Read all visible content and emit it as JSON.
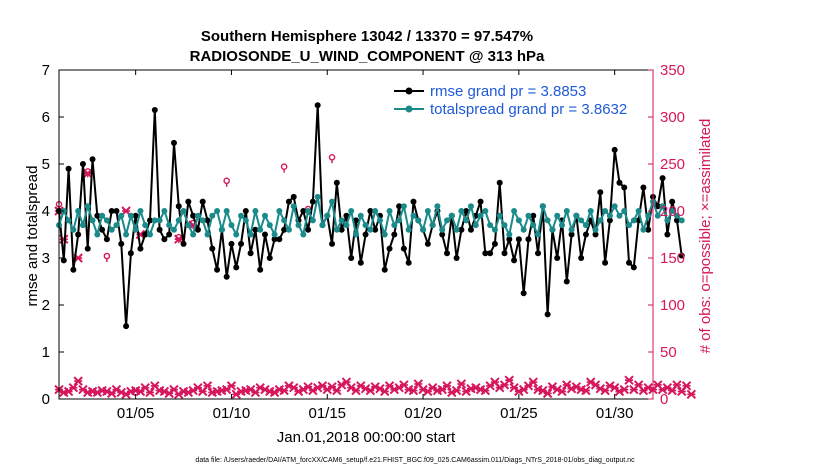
{
  "colors": {
    "rmse": "#000000",
    "spread": "#1a8a8a",
    "obs": "#d6175c",
    "legend_text": "#1f5ad8"
  },
  "chart_data": {
    "type": "line",
    "title": "Southern Hemisphere 13042 / 13370 = 97.547%",
    "subtitle": "RADIOSONDE_U_WIND_COMPONENT @ 313 hPa",
    "xlabel": "Jan.01,2018 00:00:00 start",
    "ylabel": "rmse and totalspread",
    "y2label": "# of obs: o=possible; ×=assimilated",
    "footnote": "data file: /Users/raeder/DAI/ATM_forcXX/CAM6_setup/f.e21.FHIST_BGC.f09_025.CAM6assim.011/Diags_NTrS_2018-01/obs_diag_output.nc",
    "xlim": [
      1,
      32
    ],
    "ylim": [
      0,
      7
    ],
    "y2lim": [
      0,
      350
    ],
    "x_ticks": [
      5,
      10,
      15,
      20,
      25,
      30
    ],
    "x_tick_labels": [
      "01/05",
      "01/10",
      "01/15",
      "01/20",
      "01/25",
      "01/30"
    ],
    "y_ticks": [
      0,
      1,
      2,
      3,
      4,
      5,
      6,
      7
    ],
    "y2_ticks": [
      0,
      50,
      100,
      150,
      200,
      250,
      300,
      350
    ],
    "legend": {
      "position": "top-right",
      "rmse": "rmse grand pr = 3.8853",
      "spread": "totalspread grand pr = 3.8632"
    },
    "x_start": 1,
    "x_step": 0.25,
    "series": [
      {
        "name": "rmse",
        "axis": "left",
        "values": [
          4.0,
          2.95,
          4.9,
          2.75,
          3.5,
          5.0,
          3.2,
          5.1,
          3.9,
          3.6,
          3.4,
          4.0,
          4.0,
          3.3,
          1.55,
          3.1,
          3.9,
          3.2,
          3.5,
          3.8,
          6.15,
          3.6,
          3.4,
          3.5,
          5.45,
          4.1,
          3.3,
          4.2,
          3.9,
          3.6,
          4.2,
          3.8,
          3.2,
          2.75,
          3.6,
          2.6,
          3.3,
          2.8,
          3.3,
          4.0,
          3.1,
          3.6,
          2.75,
          3.5,
          3.0,
          3.4,
          3.4,
          3.6,
          4.2,
          4.3,
          3.8,
          4.0,
          3.6,
          4.2,
          6.25,
          3.7,
          3.9,
          3.3,
          4.6,
          3.6,
          3.9,
          3.0,
          3.8,
          2.9,
          3.5,
          4.0,
          3.6,
          3.9,
          2.75,
          3.2,
          3.5,
          4.1,
          3.2,
          2.9,
          4.2,
          3.8,
          3.6,
          3.3,
          3.7,
          4.0,
          3.5,
          3.1,
          3.9,
          3.0,
          3.6,
          4.0,
          3.6,
          3.9,
          4.2,
          3.1,
          3.1,
          3.3,
          4.6,
          3.1,
          3.4,
          2.95,
          3.4,
          2.25,
          3.4,
          3.9,
          3.1,
          4.1,
          1.8,
          3.6,
          3.0,
          3.8,
          2.5,
          3.5,
          3.9,
          3.0,
          3.5,
          3.8,
          3.5,
          4.4,
          2.9,
          3.8,
          5.3,
          4.6,
          4.5,
          2.9,
          2.8,
          3.8,
          4.5,
          3.6,
          4.3,
          4.1,
          4.7,
          3.5,
          4.2,
          3.8,
          3.05
        ],
        "point_markers": true
      },
      {
        "name": "totalspread",
        "axis": "left",
        "values": [
          3.7,
          4.0,
          3.8,
          3.6,
          4.0,
          3.7,
          4.1,
          3.8,
          3.5,
          3.9,
          3.8,
          3.6,
          3.7,
          3.9,
          3.5,
          3.9,
          3.6,
          4.0,
          3.7,
          3.5,
          3.8,
          3.8,
          4.0,
          3.7,
          3.6,
          3.8,
          4.0,
          3.7,
          3.5,
          3.9,
          3.8,
          3.5,
          3.9,
          4.0,
          3.6,
          4.0,
          3.7,
          3.5,
          3.9,
          3.8,
          3.5,
          4.0,
          3.6,
          3.9,
          3.7,
          3.5,
          4.0,
          3.8,
          3.6,
          4.1,
          3.7,
          3.5,
          4.0,
          3.8,
          4.3,
          3.7,
          3.9,
          4.2,
          3.6,
          3.8,
          3.7,
          4.0,
          3.5,
          3.9,
          3.7,
          3.6,
          4.0,
          3.8,
          3.5,
          4.0,
          3.7,
          3.8,
          4.1,
          3.6,
          3.9,
          3.8,
          3.6,
          4.0,
          3.7,
          4.1,
          3.6,
          3.8,
          3.9,
          3.6,
          4.0,
          3.8,
          4.1,
          3.7,
          3.9,
          4.0,
          3.7,
          3.6,
          3.9,
          3.7,
          3.5,
          4.0,
          3.8,
          3.6,
          3.9,
          3.7,
          3.5,
          4.1,
          3.8,
          3.6,
          3.9,
          3.7,
          4.0,
          3.6,
          3.9,
          3.8,
          3.7,
          4.0,
          3.6,
          3.8,
          4.0,
          3.9,
          4.1,
          3.9,
          4.0,
          3.7,
          3.8,
          4.0,
          3.6,
          3.9,
          4.2,
          3.9,
          4.1,
          3.8,
          4.0,
          3.9,
          3.8
        ],
        "point_markers": true
      },
      {
        "name": "obs_possible_top",
        "axis": "right",
        "marker": "o",
        "values": [
          205,
          null,
          null,
          null,
          null,
          null,
          240,
          null,
          null,
          null,
          150,
          null,
          null,
          null,
          null,
          null,
          null,
          null,
          null,
          null,
          null,
          null,
          null,
          null,
          null,
          170,
          null,
          null,
          185,
          null,
          null,
          null,
          null,
          null,
          null,
          230,
          null,
          null,
          null,
          null,
          null,
          null,
          null,
          null,
          null,
          null,
          null,
          245,
          null,
          null,
          null,
          null,
          200,
          null,
          null,
          null,
          null,
          255,
          null,
          null,
          null,
          null,
          null,
          null,
          null,
          null,
          null,
          null,
          null,
          null,
          null,
          null,
          null,
          null,
          null,
          null,
          null,
          null,
          null,
          null,
          null,
          null,
          null,
          null,
          null,
          null,
          null,
          null,
          null,
          null,
          null,
          null,
          null,
          null,
          null,
          null,
          null,
          null,
          null,
          null,
          null,
          null,
          null,
          null,
          null,
          null,
          null,
          null,
          null,
          null,
          null,
          null,
          null,
          null,
          null,
          null,
          null,
          null,
          null,
          null,
          null,
          null,
          null,
          null,
          null,
          null,
          null,
          null,
          null,
          null,
          null,
          null
        ]
      },
      {
        "name": "obs_assimilated_top",
        "axis": "right",
        "marker": "x",
        "values": [
          200,
          170,
          null,
          null,
          150,
          null,
          240,
          null,
          null,
          null,
          null,
          null,
          null,
          null,
          200,
          null,
          null,
          175,
          null,
          null,
          null,
          null,
          null,
          null,
          null,
          170,
          null,
          null,
          185,
          null,
          null,
          null,
          null,
          null,
          null,
          null,
          null,
          null,
          null,
          null,
          null,
          null,
          null,
          null,
          null,
          null,
          null,
          null,
          null,
          null,
          null,
          null,
          null,
          null,
          null,
          null,
          null,
          null,
          null,
          null,
          null,
          null,
          null,
          null,
          null,
          null,
          null,
          null,
          null,
          null,
          null,
          null,
          null,
          null,
          null,
          null,
          null,
          null,
          null,
          null,
          null,
          null,
          null,
          null,
          null,
          null,
          null,
          null,
          null,
          null,
          null,
          null,
          null,
          null,
          null,
          null,
          null,
          null,
          null,
          null,
          null,
          null,
          null,
          null,
          null,
          null,
          null,
          null,
          null,
          null,
          null,
          null,
          null,
          null,
          null,
          null,
          null,
          null,
          null,
          null,
          null,
          null,
          null,
          null,
          null,
          null,
          null,
          null,
          null,
          null,
          null
        ]
      },
      {
        "name": "obs_bottom",
        "axis": "right",
        "marker": "x",
        "values": [
          10,
          7,
          8,
          12,
          19,
          10,
          7,
          8,
          7,
          9,
          8,
          6,
          10,
          7,
          5,
          8,
          9,
          8,
          12,
          7,
          14,
          9,
          8,
          6,
          10,
          5,
          8,
          7,
          9,
          12,
          8,
          14,
          7,
          8,
          9,
          10,
          14,
          5,
          8,
          9,
          10,
          7,
          12,
          10,
          8,
          7,
          10,
          9,
          14,
          12,
          8,
          10,
          13,
          9,
          12,
          14,
          10,
          13,
          9,
          15,
          18,
          12,
          9,
          14,
          11,
          9,
          13,
          11,
          8,
          14,
          10,
          12,
          15,
          10,
          9,
          16,
          10,
          8,
          12,
          9,
          10,
          14,
          7,
          9,
          16,
          8,
          11,
          12,
          10,
          9,
          14,
          18,
          12,
          15,
          20,
          12,
          8,
          10,
          14,
          18,
          10,
          9,
          6,
          13,
          10,
          8,
          15,
          11,
          13,
          10,
          9,
          18,
          15,
          11,
          9,
          14,
          12,
          8,
          10,
          20,
          10,
          15,
          9,
          12,
          10,
          15,
          10,
          12,
          9,
          15,
          8,
          14,
          5
        ]
      }
    ]
  }
}
